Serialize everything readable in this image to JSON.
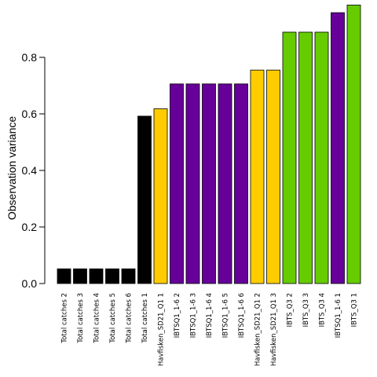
{
  "chart_data": {
    "type": "bar",
    "title": "",
    "xlabel": "",
    "ylabel": "Observation variance",
    "ylim": [
      0,
      1.0
    ],
    "yticks": [
      0.0,
      0.2,
      0.4,
      0.6,
      0.8
    ],
    "ytick_labels": [
      "0.0",
      "0.2",
      "0.4",
      "0.6",
      "0.8"
    ],
    "grid": false,
    "legend": "none",
    "categories": [
      "Total catches 2",
      "Total catches 3",
      "Total catches 4",
      "Total catches 5",
      "Total catches 6",
      "Total catches 1",
      "Havfisken_SD21_Q1 1",
      "IBTSQ1_1-6 2",
      "IBTSQ1_1-6 3",
      "IBTSQ1_1-6 4",
      "IBTSQ1_1-6 5",
      "IBTSQ1_1-6 6",
      "Havfisken_SD21_Q1 2",
      "Havfisken_SD21_Q1 3",
      "IBTS_Q3 2",
      "IBTS_Q3 3",
      "IBTS_Q3 4",
      "IBTSQ1_1-6 1",
      "IBTS_Q3 1"
    ],
    "values": [
      0.052,
      0.052,
      0.052,
      0.052,
      0.052,
      0.592,
      0.618,
      0.706,
      0.706,
      0.706,
      0.706,
      0.706,
      0.755,
      0.755,
      0.889,
      0.889,
      0.889,
      0.958,
      0.985
    ],
    "colors": [
      "#000000",
      "#000000",
      "#000000",
      "#000000",
      "#000000",
      "#000000",
      "#FFCC00",
      "#660099",
      "#660099",
      "#660099",
      "#660099",
      "#660099",
      "#FFCC00",
      "#FFCC00",
      "#66CC00",
      "#66CC00",
      "#66CC00",
      "#660099",
      "#66CC00"
    ]
  }
}
